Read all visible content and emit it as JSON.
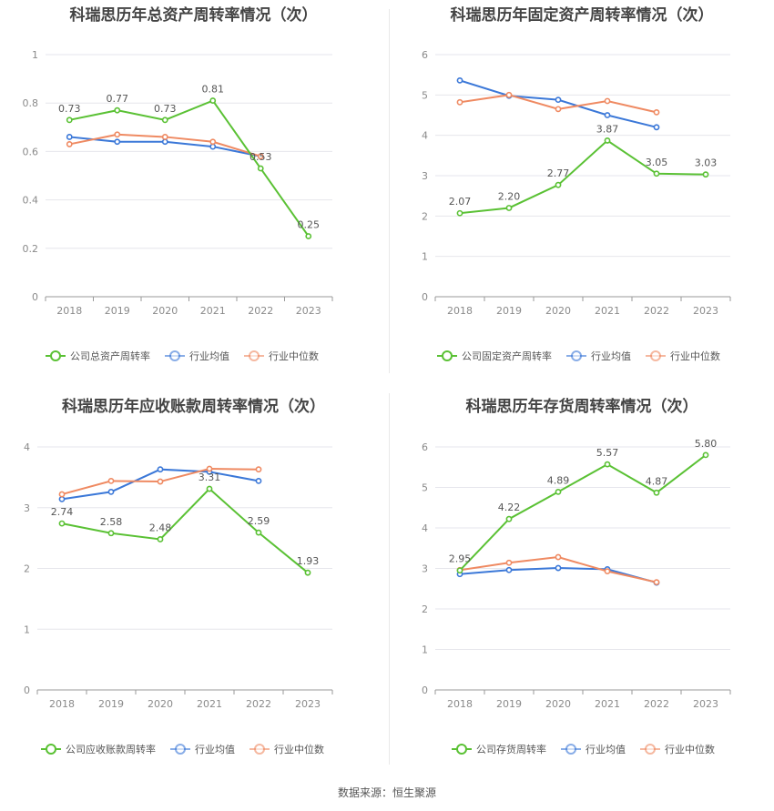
{
  "source_label": "数据来源：恒生聚源",
  "colors": {
    "company": "#5ac134",
    "avg": "#3b78d8",
    "median": "#ef8a62",
    "grid": "#e6e6ec",
    "axis": "#999999"
  },
  "chart_data": [
    {
      "type": "line",
      "title": "科瑞思历年总资产周转率情况（次）",
      "categories": [
        "2018",
        "2019",
        "2020",
        "2021",
        "2022",
        "2023"
      ],
      "ylim": [
        0,
        1
      ],
      "yticks": [
        "0",
        "0.2",
        "0.4",
        "0.6",
        "0.8",
        "1"
      ],
      "ytick_values": [
        0,
        0.2,
        0.4,
        0.6,
        0.8,
        1
      ],
      "series": [
        {
          "name": "公司总资产周转率",
          "role": "company",
          "values": [
            0.73,
            0.77,
            0.73,
            0.81,
            0.53,
            0.25
          ],
          "labels": [
            "0.73",
            "0.77",
            "0.73",
            "0.81",
            "0.53",
            "0.25"
          ]
        },
        {
          "name": "行业均值",
          "role": "avg",
          "values": [
            0.66,
            0.64,
            0.64,
            0.62,
            0.58,
            null
          ]
        },
        {
          "name": "行业中位数",
          "role": "median",
          "values": [
            0.63,
            0.67,
            0.66,
            0.64,
            0.58,
            null
          ]
        }
      ]
    },
    {
      "type": "line",
      "title": "科瑞思历年固定资产周转率情况（次）",
      "categories": [
        "2018",
        "2019",
        "2020",
        "2021",
        "2022",
        "2023"
      ],
      "ylim": [
        0,
        6
      ],
      "yticks": [
        "0",
        "1",
        "2",
        "3",
        "4",
        "5",
        "6"
      ],
      "ytick_values": [
        0,
        1,
        2,
        3,
        4,
        5,
        6
      ],
      "series": [
        {
          "name": "公司固定资产周转率",
          "role": "company",
          "values": [
            2.07,
            2.2,
            2.77,
            3.87,
            3.05,
            3.03
          ],
          "labels": [
            "2.07",
            "2.20",
            "2.77",
            "3.87",
            "3.05",
            "3.03"
          ]
        },
        {
          "name": "行业均值",
          "role": "avg",
          "values": [
            5.36,
            4.98,
            4.88,
            4.5,
            4.2,
            null
          ]
        },
        {
          "name": "行业中位数",
          "role": "median",
          "values": [
            4.82,
            5.0,
            4.65,
            4.85,
            4.57,
            null
          ]
        }
      ]
    },
    {
      "type": "line",
      "title": "科瑞思历年应收账款周转率情况（次）",
      "categories": [
        "2018",
        "2019",
        "2020",
        "2021",
        "2022",
        "2023"
      ],
      "ylim": [
        0,
        4
      ],
      "yticks": [
        "0",
        "1",
        "2",
        "3",
        "4"
      ],
      "ytick_values": [
        0,
        1,
        2,
        3,
        4
      ],
      "series": [
        {
          "name": "公司应收账款周转率",
          "role": "company",
          "values": [
            2.74,
            2.58,
            2.48,
            3.31,
            2.59,
            1.93
          ],
          "labels": [
            "2.74",
            "2.58",
            "2.48",
            "3.31",
            "2.59",
            "1.93"
          ]
        },
        {
          "name": "行业均值",
          "role": "avg",
          "values": [
            3.14,
            3.26,
            3.63,
            3.59,
            3.44,
            null
          ]
        },
        {
          "name": "行业中位数",
          "role": "median",
          "values": [
            3.22,
            3.44,
            3.43,
            3.64,
            3.63,
            null
          ]
        }
      ]
    },
    {
      "type": "line",
      "title": "科瑞思历年存货周转率情况（次）",
      "categories": [
        "2018",
        "2019",
        "2020",
        "2021",
        "2022",
        "2023"
      ],
      "ylim": [
        0,
        6
      ],
      "yticks": [
        "0",
        "1",
        "2",
        "3",
        "4",
        "5",
        "6"
      ],
      "ytick_values": [
        0,
        1,
        2,
        3,
        4,
        5,
        6
      ],
      "series": [
        {
          "name": "公司存货周转率",
          "role": "company",
          "values": [
            2.95,
            4.22,
            4.89,
            5.57,
            4.87,
            5.8
          ],
          "labels": [
            "2.95",
            "4.22",
            "4.89",
            "5.57",
            "4.87",
            "5.80"
          ]
        },
        {
          "name": "行业均值",
          "role": "avg",
          "values": [
            2.86,
            2.96,
            3.01,
            2.98,
            2.65,
            null
          ]
        },
        {
          "name": "行业中位数",
          "role": "median",
          "values": [
            2.96,
            3.14,
            3.28,
            2.93,
            2.66,
            null
          ]
        }
      ]
    }
  ]
}
